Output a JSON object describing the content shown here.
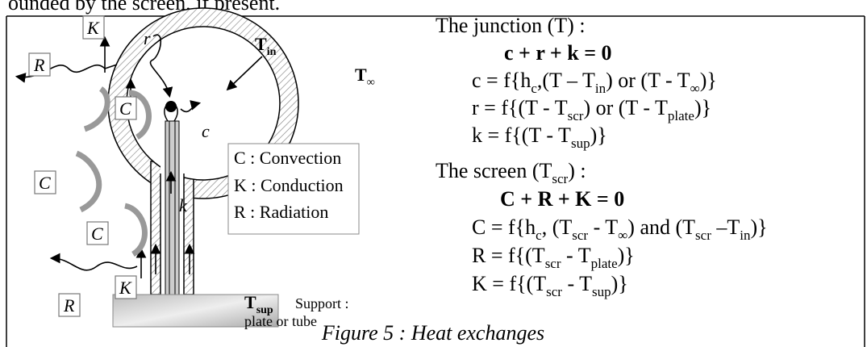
{
  "header": "ounded by the screen, if present.",
  "diagram": {
    "t_in": [
      "T",
      "in"
    ],
    "t_inf": [
      "T",
      "∞"
    ],
    "t_sup": [
      "T",
      "sup"
    ],
    "support": "Support :",
    "support_kind": "plate or tube",
    "flux_labels": {
      "R_top": "R",
      "K_top": "K",
      "C_left": "C",
      "C_inner": "C",
      "r": "r",
      "c": "c",
      "k": "k",
      "C_stem": "C",
      "R_bottom": "R",
      "K_bottom": "K"
    },
    "legend": [
      "C : Convection",
      "K : Conduction",
      "R : Radiation"
    ]
  },
  "equations": {
    "junction": [
      [
        "The junction (T) :"
      ],
      [
        "c + r + k = 0"
      ],
      [
        "c = f{h",
        "c",
        ",(T – T",
        "in",
        ") or (T - T",
        "∞",
        ")}"
      ],
      [
        "r = f{(T - T",
        "scr",
        ") or (T - T",
        "plate",
        ")}"
      ],
      [
        "k = f{(T - T",
        "sup",
        ")}"
      ]
    ],
    "screen": [
      [
        "The screen (T",
        "scr",
        ") :"
      ],
      [
        "C + R + K = 0"
      ],
      [
        "C = f{h",
        "c",
        ", (T",
        "scr",
        " - T",
        "∞",
        ") and (T",
        "scr",
        " –T",
        "in",
        ")}"
      ],
      [
        "R = f{(T",
        "scr",
        " - T",
        "plate",
        ")}"
      ],
      [
        "K = f{(T",
        "scr",
        " - T",
        "sup",
        ")}"
      ]
    ]
  },
  "caption": "Figure 5 : Heat exchanges"
}
